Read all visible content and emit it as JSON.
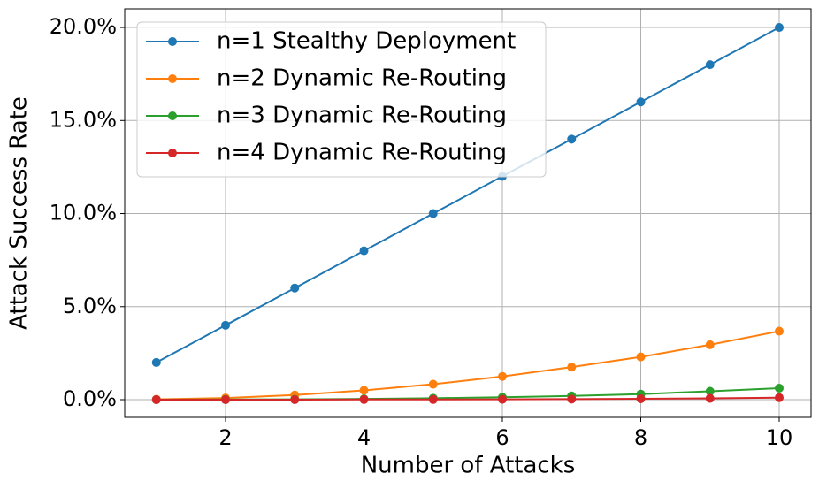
{
  "chart_data": {
    "type": "line",
    "x_label": "Number of Attacks",
    "y_label": "Attack Success Rate",
    "x": [
      1,
      2,
      3,
      4,
      5,
      6,
      7,
      8,
      9,
      10
    ],
    "series": [
      {
        "name": "n=1 Stealthy Deployment",
        "color": "#1f77b4",
        "values": [
          2,
          4,
          6,
          8,
          10,
          12,
          14,
          16,
          18,
          20
        ]
      },
      {
        "name": "n=2 Dynamic Re-Routing",
        "color": "#ff7f0e",
        "values": [
          0.02,
          0.09,
          0.25,
          0.5,
          0.83,
          1.25,
          1.75,
          2.3,
          2.95,
          3.68
        ]
      },
      {
        "name": "n=3 Dynamic Re-Routing",
        "color": "#2ca02c",
        "values": [
          0,
          0.01,
          0.02,
          0.04,
          0.08,
          0.13,
          0.2,
          0.3,
          0.45,
          0.62
        ]
      },
      {
        "name": "n=4 Dynamic Re-Routing",
        "color": "#d62728",
        "values": [
          0,
          0,
          0,
          0.01,
          0.01,
          0.02,
          0.03,
          0.05,
          0.07,
          0.11
        ]
      }
    ],
    "xlim": [
      0.543,
      10.46
    ],
    "xticks": [
      2,
      4,
      6,
      8,
      10
    ],
    "ylim": [
      -0.95,
      21.0
    ],
    "yticks": [
      {
        "value": 0,
        "label": "0.0%"
      },
      {
        "value": 5,
        "label": "5.0%"
      },
      {
        "value": 10,
        "label": "10.0%"
      },
      {
        "value": 15,
        "label": "15.0%"
      },
      {
        "value": 20,
        "label": "20.0%"
      }
    ],
    "grid": true,
    "legend": "upper left"
  }
}
